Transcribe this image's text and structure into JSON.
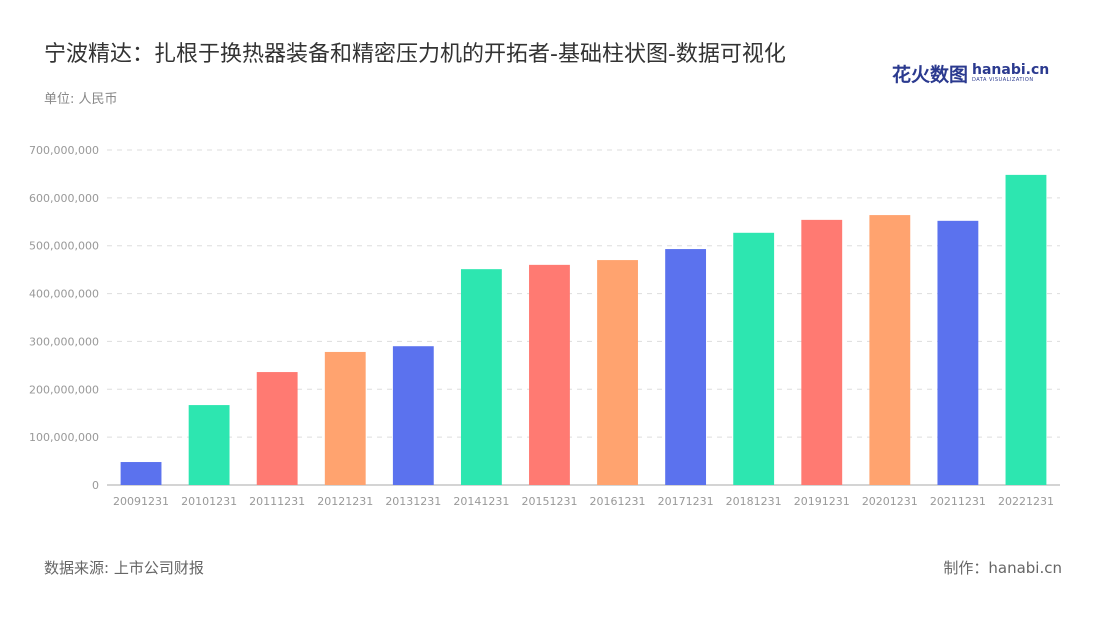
{
  "title": "宁波精达：扎根于换热器装备和精密压力机的开拓者-基础柱状图-数据可视化",
  "unit": "单位: 人民币",
  "logo": {
    "cn": "花火数图",
    "en": "hanabi.cn",
    "sub": "DATA VISUALIZATION"
  },
  "footer": {
    "source": "数据来源: 上市公司财报",
    "maker": "制作：hanabi.cn"
  },
  "chart_data": {
    "type": "bar",
    "categories": [
      "20091231",
      "20101231",
      "20111231",
      "20121231",
      "20131231",
      "20141231",
      "20151231",
      "20161231",
      "20171231",
      "20181231",
      "20191231",
      "20201231",
      "20211231",
      "20221231"
    ],
    "values": [
      48000000,
      167000000,
      236000000,
      278000000,
      290000000,
      451000000,
      460000000,
      470000000,
      493000000,
      527000000,
      554000000,
      564000000,
      552000000,
      648000000
    ],
    "ylim": [
      0,
      700000000
    ],
    "yticks": [
      "0",
      "100,000,000",
      "200,000,000",
      "300,000,000",
      "400,000,000",
      "500,000,000",
      "600,000,000",
      "700,000,000"
    ],
    "grid": true,
    "colors": [
      "#5b72ee",
      "#2de6b0",
      "#ff7a72",
      "#ffa36f"
    ]
  }
}
